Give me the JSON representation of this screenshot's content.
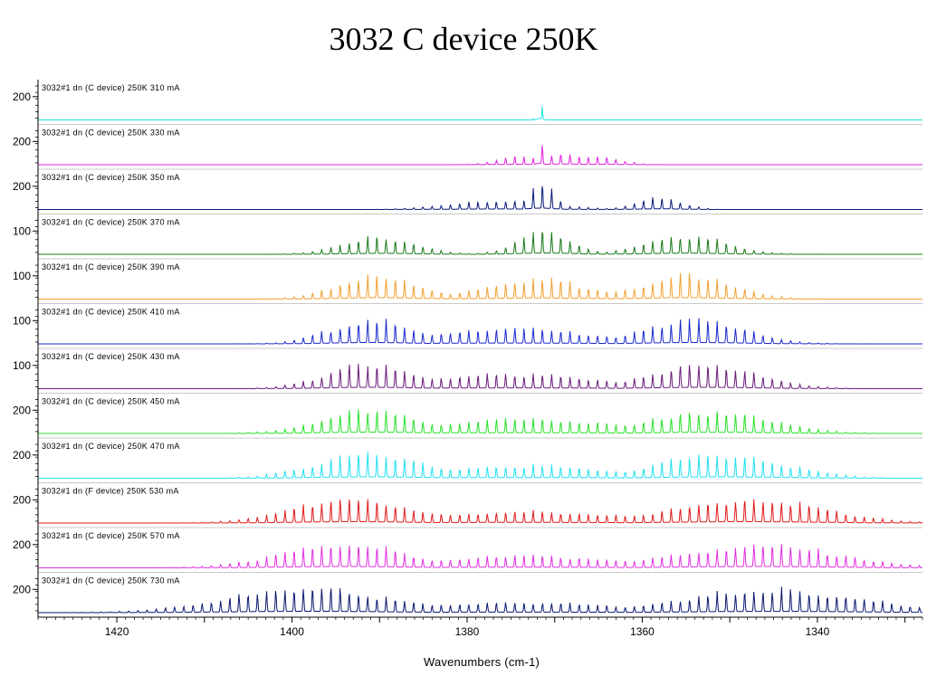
{
  "title": "3032 C device 250K",
  "chart_data": {
    "type": "line",
    "title": "3032 C device 250K",
    "xlabel": "Wavenumbers (cm-1)",
    "ylabel": "",
    "xlim": [
      1429,
      1328
    ],
    "x_reversed": true,
    "x_ticks": [
      1420,
      1400,
      1380,
      1360,
      1340
    ],
    "x_tick_labels": [
      "1420",
      "1400",
      "1380",
      "1360",
      "1340"
    ],
    "grid": false,
    "series": [
      {
        "name": "3032#1 dn (C device) 250K 310 mA",
        "current_mA": 310,
        "color": "#1fe3e3",
        "y_tick_label": "200",
        "y_tick": 200,
        "envelope": {
          "centers": [
            1371.7
          ],
          "widths": [
            0.3
          ],
          "amps": [
            1.0
          ]
        }
      },
      {
        "name": "3032#1 dn (C device) 250K 330 mA",
        "current_mA": 330,
        "color": "#e020e0",
        "y_tick_label": "200",
        "y_tick": 200,
        "envelope": {
          "centers": [
            1371.7,
            1369,
            1374,
            1365
          ],
          "widths": [
            0.4,
            2.0,
            2.5,
            2.5
          ],
          "amps": [
            1.0,
            0.45,
            0.3,
            0.3
          ]
        }
      },
      {
        "name": "3032#1 dn (C device) 250K 350 mA",
        "current_mA": 350,
        "color": "#0a1a7a",
        "y_tick_label": "200",
        "y_tick": 200,
        "envelope": {
          "centers": [
            1371.5,
            1376,
            1358
          ],
          "widths": [
            1.5,
            5.5,
            2.5
          ],
          "amps": [
            0.95,
            0.35,
            0.45
          ]
        }
      },
      {
        "name": "3032#1 dn (C device) 250K 370 mA",
        "current_mA": 370,
        "color": "#1a7a1a",
        "y_tick_label": "100",
        "y_tick": 100,
        "envelope": {
          "centers": [
            1390,
            1371,
            1355
          ],
          "widths": [
            4.0,
            3.0,
            4.5
          ],
          "amps": [
            0.65,
            0.9,
            0.75
          ]
        }
      },
      {
        "name": "3032#1 dn (C device) 250K 390 mA",
        "current_mA": 390,
        "color": "#f0a030",
        "y_tick_label": "100",
        "y_tick": 100,
        "envelope": {
          "centers": [
            1390,
            1372,
            1355
          ],
          "widths": [
            4.5,
            6.0,
            5.0
          ],
          "amps": [
            0.95,
            0.75,
            0.95
          ]
        }
      },
      {
        "name": "3032#1 dn (C device) 250K 410 mA",
        "current_mA": 410,
        "color": "#1a2acc",
        "y_tick_label": "100",
        "y_tick": 100,
        "envelope": {
          "centers": [
            1391,
            1375,
            1354
          ],
          "widths": [
            4.5,
            9.0,
            5.5
          ],
          "amps": [
            0.95,
            0.6,
            0.95
          ]
        }
      },
      {
        "name": "3032#1 dn (C device) 250K 430 mA",
        "current_mA": 430,
        "color": "#6a1a7a",
        "y_tick_label": "100",
        "y_tick": 100,
        "envelope": {
          "centers": [
            1391,
            1375,
            1353
          ],
          "widths": [
            5.0,
            10.0,
            6.0
          ],
          "amps": [
            0.95,
            0.55,
            0.95
          ]
        }
      },
      {
        "name": "3032#1 dn (C device) 250K 450 mA",
        "current_mA": 450,
        "color": "#2ae02a",
        "y_tick_label": "200",
        "y_tick": 200,
        "envelope": {
          "centers": [
            1391,
            1374,
            1352
          ],
          "widths": [
            5.5,
            11.0,
            6.5
          ],
          "amps": [
            0.95,
            0.55,
            0.9
          ]
        }
      },
      {
        "name": "3032#1 dn (C device) 250K 470 mA",
        "current_mA": 470,
        "color": "#20e0f0",
        "y_tick_label": "200",
        "y_tick": 200,
        "envelope": {
          "centers": [
            1391,
            1374,
            1351
          ],
          "widths": [
            6.0,
            11.0,
            7.0
          ],
          "amps": [
            0.95,
            0.5,
            0.95
          ]
        }
      },
      {
        "name": "3032#1 dn (F device) 250K 530 mA",
        "current_mA": 530,
        "color": "#e01a1a",
        "y_tick_label": "200",
        "y_tick": 200,
        "envelope": {
          "centers": [
            1393,
            1374,
            1348
          ],
          "widths": [
            6.5,
            12.0,
            8.0
          ],
          "amps": [
            0.95,
            0.45,
            0.95
          ]
        }
      },
      {
        "name": "3032#1 dn (C device) 250K 570 mA",
        "current_mA": 570,
        "color": "#e030e0",
        "y_tick_label": "200",
        "y_tick": 200,
        "envelope": {
          "centers": [
            1394,
            1374,
            1347
          ],
          "widths": [
            7.0,
            12.0,
            8.5
          ],
          "amps": [
            0.95,
            0.45,
            0.95
          ]
        }
      },
      {
        "name": "3032#1 dn (C device) 250K 730 mA",
        "current_mA": 730,
        "color": "#0a1a70",
        "y_tick_label": "200",
        "y_tick": 200,
        "envelope": {
          "centers": [
            1398,
            1375,
            1345
          ],
          "widths": [
            9.0,
            13.0,
            10.0
          ],
          "amps": [
            0.95,
            0.4,
            0.9
          ]
        }
      }
    ]
  }
}
